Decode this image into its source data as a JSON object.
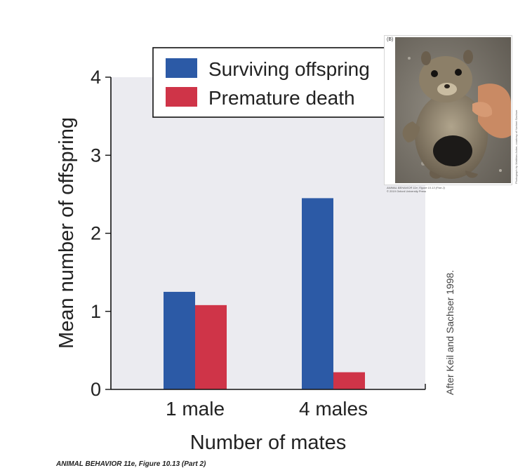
{
  "chart_data": {
    "type": "bar",
    "categories": [
      "1 male",
      "4 males"
    ],
    "series": [
      {
        "name": "Surviving offspring",
        "values": [
          1.25,
          2.45
        ],
        "color": "#2c5aa6"
      },
      {
        "name": "Premature death",
        "values": [
          1.08,
          0.22
        ],
        "color": "#cf3448"
      }
    ],
    "xlabel": "Number of mates",
    "ylabel": "Mean number of offspring",
    "ylim": [
      0,
      4
    ],
    "yticks": [
      "0",
      "1",
      "2",
      "3",
      "4"
    ],
    "legend_position": "top",
    "grid": false,
    "background": "#ebebf0"
  },
  "photo_panel": {
    "label": "(B)",
    "caption_line1": "ANIMAL BEHAVIOR 11e, Figure 10.13 (Part 2)",
    "caption_line2": "© 2019 Oxford University Press",
    "credit": "Photograph by Matthias Asher, courtesy of Norbert Sachser"
  },
  "source_note": "After Keil and Sachser 1998.",
  "figure_caption": "ANIMAL BEHAVIOR 11e, Figure 10.13 (Part 2)"
}
